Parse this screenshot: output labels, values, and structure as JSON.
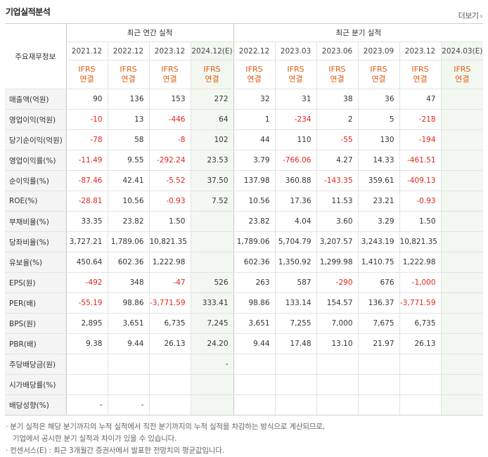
{
  "header": {
    "title": "기업실적분석",
    "more_label": "더보기"
  },
  "table": {
    "label_header": "주요재무정보",
    "group_annual": "최근 연간 실적",
    "group_quarter": "최근 분기 실적",
    "periods": [
      "2021.12",
      "2022.12",
      "2023.12",
      "2024.12(E)",
      "2022.12",
      "2023.03",
      "2023.06",
      "2023.09",
      "2023.12",
      "2024.03(E)"
    ],
    "estimate_cols": [
      3,
      9
    ],
    "basis_top": "IFRS",
    "basis_bottom": "연결",
    "rows": [
      {
        "label": "매출액(억원)",
        "values": [
          "90",
          "136",
          "153",
          "272",
          "32",
          "31",
          "38",
          "36",
          "47",
          ""
        ]
      },
      {
        "label": "영업이익(억원)",
        "values": [
          "-10",
          "13",
          "-446",
          "64",
          "1",
          "-234",
          "2",
          "5",
          "-218",
          ""
        ]
      },
      {
        "label": "당기순이익(억원)",
        "values": [
          "-78",
          "58",
          "-8",
          "102",
          "44",
          "110",
          "-55",
          "130",
          "-194",
          ""
        ]
      },
      {
        "label": "영업이익률(%)",
        "values": [
          "-11.49",
          "9.55",
          "-292.24",
          "23.53",
          "3.79",
          "-766.06",
          "4.27",
          "14.33",
          "-461.51",
          ""
        ]
      },
      {
        "label": "순이익률(%)",
        "values": [
          "-87.46",
          "42.41",
          "-5.52",
          "37.50",
          "137.98",
          "360.88",
          "-143.35",
          "359.61",
          "-409.13",
          ""
        ]
      },
      {
        "label": "ROE(%)",
        "values": [
          "-28.81",
          "10.56",
          "-0.93",
          "7.52",
          "10.56",
          "17.36",
          "11.53",
          "23.21",
          "-0.93",
          ""
        ]
      },
      {
        "label": "부채비율(%)",
        "values": [
          "33.35",
          "23.82",
          "1.50",
          "",
          "23.82",
          "4.04",
          "3.60",
          "3.29",
          "1.50",
          ""
        ]
      },
      {
        "label": "당좌비율(%)",
        "values": [
          "3,727.21",
          "1,789.06",
          "10,821.35",
          "",
          "1,789.06",
          "5,704.79",
          "3,207.57",
          "3,243.19",
          "10,821.35",
          ""
        ]
      },
      {
        "label": "유보율(%)",
        "values": [
          "450.64",
          "602.36",
          "1,222.98",
          "",
          "602.36",
          "1,350.92",
          "1,299.98",
          "1,410.75",
          "1,222.98",
          ""
        ]
      },
      {
        "label": "EPS(원)",
        "values": [
          "-492",
          "348",
          "-47",
          "526",
          "263",
          "587",
          "-290",
          "676",
          "-1,000",
          ""
        ]
      },
      {
        "label": "PER(배)",
        "values": [
          "-55.19",
          "98.86",
          "-3,771.59",
          "333.41",
          "98.86",
          "133.14",
          "154.57",
          "136.37",
          "-3,771.59",
          ""
        ]
      },
      {
        "label": "BPS(원)",
        "values": [
          "2,895",
          "3,651",
          "6,735",
          "7,245",
          "3,651",
          "7,255",
          "7,000",
          "7,675",
          "6,735",
          ""
        ]
      },
      {
        "label": "PBR(배)",
        "values": [
          "9.38",
          "9.44",
          "26.13",
          "24.20",
          "9.44",
          "17.48",
          "13.10",
          "21.97",
          "26.13",
          ""
        ]
      },
      {
        "label": "주당배당금(원)",
        "values": [
          "",
          "",
          "",
          "-",
          "",
          "",
          "",
          "",
          "",
          ""
        ]
      },
      {
        "label": "시가배당률(%)",
        "values": [
          "",
          "",
          "",
          "",
          "",
          "",
          "",
          "",
          "",
          ""
        ]
      },
      {
        "label": "배당성향(%)",
        "values": [
          "-",
          "-",
          "",
          "",
          "",
          "",
          "",
          "",
          "",
          ""
        ]
      }
    ]
  },
  "notes": {
    "line1": "분기 실적은 해당 분기까지의 누적 실적에서 직전 분기까지의 누적 실적을 차감하는 방식으로 계산되므로,",
    "line2": "기업에서 공시한 분기 실적과 차이가 있을 수 있습니다.",
    "line3": "컨센서스(E) : 최근 3개월간 증권사에서 발표한 전망치의 평균값입니다.",
    "bullet": "·"
  },
  "colors": {
    "accent": "#e05b12",
    "negative": "#e0261d",
    "estimate_bg": "#f2f8f0",
    "label_bg": "#f4f4f4"
  }
}
